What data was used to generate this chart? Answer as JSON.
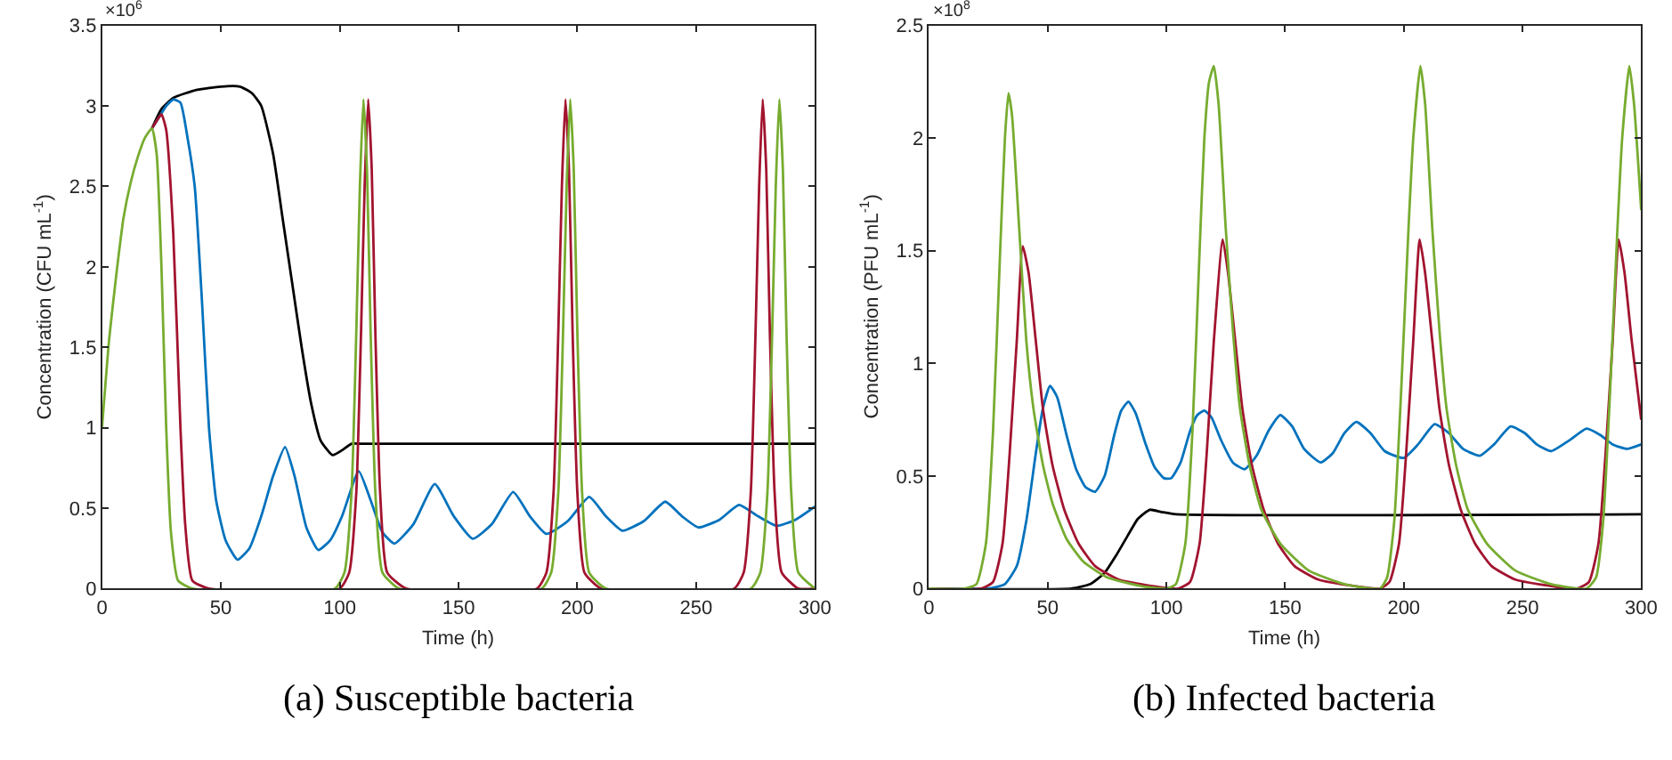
{
  "chart_data": [
    {
      "type": "line",
      "title": "(a) Susceptible bacteria",
      "xlabel": "Time (h)",
      "ylabel": "Concentration (CFU mL$^{-1}$)",
      "annotations": [
        "×10$^{6}$"
      ],
      "xlim": [
        0,
        300
      ],
      "xticks": [
        0,
        50,
        100,
        150,
        200,
        250,
        300
      ],
      "ylim": [
        0,
        3.5
      ],
      "yticks": [
        0,
        0.5,
        1,
        1.5,
        2,
        2.5,
        3,
        3.5
      ],
      "line_style": "solid",
      "marker": "none",
      "series": [
        {
          "color": "#000000",
          "x": [
            21,
            25,
            30,
            40,
            50,
            58,
            63,
            67,
            72,
            76,
            80,
            84,
            88,
            92,
            97,
            101,
            105,
            110,
            300
          ],
          "values": [
            2.86,
            2.98,
            3.05,
            3.1,
            3.12,
            3.12,
            3.08,
            3.0,
            2.7,
            2.3,
            1.9,
            1.5,
            1.15,
            0.92,
            0.83,
            0.86,
            0.9,
            0.9,
            0.9
          ]
        },
        {
          "color": "#0072bd",
          "x": [
            21,
            24,
            27,
            30,
            33,
            36,
            39,
            42,
            45,
            48,
            52,
            57,
            62,
            67,
            72,
            77,
            81,
            86,
            91,
            96,
            101,
            108,
            113,
            118,
            123,
            131,
            140,
            148,
            156,
            164,
            173,
            180,
            187,
            196,
            205,
            212,
            219,
            228,
            237,
            244,
            251,
            260,
            268,
            276,
            284,
            292,
            300
          ],
          "values": [
            2.86,
            2.93,
            3.0,
            3.04,
            3.02,
            2.8,
            2.5,
            1.8,
            1.0,
            0.55,
            0.3,
            0.18,
            0.25,
            0.45,
            0.7,
            0.88,
            0.7,
            0.38,
            0.24,
            0.3,
            0.45,
            0.73,
            0.55,
            0.35,
            0.28,
            0.4,
            0.65,
            0.45,
            0.31,
            0.4,
            0.6,
            0.45,
            0.34,
            0.42,
            0.57,
            0.45,
            0.36,
            0.42,
            0.54,
            0.45,
            0.38,
            0.43,
            0.52,
            0.45,
            0.39,
            0.43,
            0.51
          ]
        },
        {
          "color": "#a2142f",
          "x": [
            21,
            24,
            25,
            27,
            30,
            33,
            35,
            38,
            45,
            100,
            104,
            107,
            109,
            110.5,
            112,
            113.5,
            115,
            117,
            120,
            128,
            183,
            187,
            190,
            192,
            193.5,
            195,
            196.5,
            198,
            200,
            203,
            210,
            266,
            270,
            273,
            275,
            276.5,
            278,
            279.5,
            281,
            283,
            286,
            293,
            300
          ],
          "values": [
            2.86,
            2.93,
            2.95,
            2.85,
            2.2,
            1.0,
            0.4,
            0.05,
            0,
            0,
            0.1,
            0.6,
            1.6,
            2.5,
            3.04,
            2.6,
            1.6,
            0.6,
            0.1,
            0,
            0,
            0.1,
            0.6,
            1.6,
            2.5,
            3.04,
            2.6,
            1.6,
            0.6,
            0.1,
            0,
            0,
            0.1,
            0.6,
            1.6,
            2.5,
            3.04,
            2.6,
            1.6,
            0.6,
            0.1,
            0,
            0
          ]
        },
        {
          "color": "#77ac30",
          "x": [
            0,
            3,
            6,
            9,
            12,
            15,
            18,
            21,
            23,
            25,
            27,
            29,
            32,
            38,
            98,
            102,
            105,
            107,
            108.5,
            110,
            111.5,
            113,
            115,
            118,
            125,
            185,
            189,
            192,
            194,
            195.5,
            197,
            198.5,
            200,
            202,
            205,
            212,
            273,
            277,
            280,
            282,
            283.5,
            285,
            286.5,
            288,
            290,
            293,
            300
          ],
          "values": [
            1.0,
            1.55,
            1.95,
            2.3,
            2.52,
            2.68,
            2.8,
            2.86,
            2.7,
            2.0,
            1.0,
            0.35,
            0.05,
            0,
            0,
            0.1,
            0.6,
            1.6,
            2.5,
            3.04,
            2.6,
            1.6,
            0.6,
            0.1,
            0,
            0,
            0.1,
            0.6,
            1.6,
            2.5,
            3.04,
            2.6,
            1.6,
            0.6,
            0.1,
            0,
            0,
            0.1,
            0.6,
            1.6,
            2.5,
            3.04,
            2.6,
            1.6,
            0.6,
            0.1,
            0
          ]
        }
      ]
    },
    {
      "type": "line",
      "title": "(b) Infected bacteria",
      "xlabel": "Time (h)",
      "ylabel": "Concentration (PFU mL$^{-1}$)",
      "annotations": [
        "×10$^{8}$"
      ],
      "xlim": [
        0,
        300
      ],
      "xticks": [
        0,
        50,
        100,
        150,
        200,
        250,
        300
      ],
      "ylim": [
        0,
        2.5
      ],
      "yticks": [
        0,
        0.5,
        1,
        1.5,
        2,
        2.5
      ],
      "line_style": "solid",
      "marker": "none",
      "series": [
        {
          "color": "#000000",
          "x": [
            0,
            60,
            68,
            74,
            79,
            84,
            88,
            93,
            98,
            104,
            300
          ],
          "values": [
            0,
            0,
            0.02,
            0.07,
            0.15,
            0.24,
            0.31,
            0.35,
            0.34,
            0.33,
            0.33
          ]
        },
        {
          "color": "#0072bd",
          "x": [
            0,
            25,
            32,
            37,
            41,
            45,
            48,
            51,
            54,
            58,
            62,
            66,
            70,
            74,
            78,
            81,
            84,
            87,
            91,
            95,
            99,
            102,
            106,
            110,
            113,
            116,
            119,
            123,
            128,
            133,
            138,
            143,
            148,
            153,
            158,
            165,
            170,
            175,
            180,
            186,
            192,
            200,
            206,
            213,
            219,
            225,
            232,
            238,
            245,
            251,
            256,
            262,
            270,
            277,
            283,
            288,
            294,
            300
          ],
          "values": [
            0,
            0,
            0.02,
            0.1,
            0.3,
            0.6,
            0.8,
            0.9,
            0.85,
            0.68,
            0.53,
            0.45,
            0.43,
            0.5,
            0.68,
            0.79,
            0.83,
            0.78,
            0.65,
            0.54,
            0.49,
            0.49,
            0.56,
            0.7,
            0.77,
            0.79,
            0.76,
            0.66,
            0.56,
            0.53,
            0.59,
            0.7,
            0.77,
            0.72,
            0.62,
            0.56,
            0.6,
            0.69,
            0.74,
            0.69,
            0.61,
            0.58,
            0.64,
            0.73,
            0.69,
            0.62,
            0.59,
            0.64,
            0.72,
            0.69,
            0.64,
            0.61,
            0.66,
            0.71,
            0.68,
            0.64,
            0.62,
            0.64
          ]
        },
        {
          "color": "#a2142f",
          "x": [
            0,
            22,
            27,
            31,
            34,
            37,
            39.5,
            42,
            45,
            48,
            52,
            57,
            63,
            70,
            80,
            95,
            105,
            110,
            114,
            117,
            120,
            123.75,
            126,
            129,
            132,
            136,
            141,
            147,
            154,
            164,
            180,
            190,
            194,
            198,
            201,
            204,
            206.7,
            209,
            212,
            215,
            219,
            224,
            230,
            237,
            247,
            263,
            273,
            278,
            282,
            285,
            288,
            290.5,
            293,
            296,
            300
          ],
          "values": [
            0,
            0,
            0.03,
            0.2,
            0.6,
            1.1,
            1.52,
            1.4,
            1.1,
            0.8,
            0.55,
            0.35,
            0.2,
            0.1,
            0.04,
            0.01,
            0,
            0.03,
            0.2,
            0.6,
            1.1,
            1.55,
            1.4,
            1.1,
            0.8,
            0.55,
            0.35,
            0.2,
            0.1,
            0.04,
            0.01,
            0,
            0.03,
            0.2,
            0.6,
            1.1,
            1.55,
            1.4,
            1.1,
            0.8,
            0.55,
            0.35,
            0.2,
            0.1,
            0.04,
            0.01,
            0,
            0.03,
            0.2,
            0.6,
            1.1,
            1.55,
            1.4,
            1.1,
            0.75
          ]
        },
        {
          "color": "#77ac30",
          "x": [
            0,
            15,
            20,
            24,
            27,
            30,
            32,
            33.5,
            35,
            38,
            41,
            44,
            48,
            52,
            58,
            65,
            75,
            90,
            100,
            104,
            108,
            111,
            114,
            116,
            118,
            120,
            122,
            125,
            128,
            131,
            135,
            140,
            148,
            160,
            175,
            190,
            193,
            196,
            199,
            202,
            204,
            207,
            209,
            212,
            215,
            218,
            222,
            227,
            235,
            247,
            262,
            277,
            281,
            284,
            287,
            290,
            292,
            295,
            297,
            300
          ],
          "values": [
            0,
            0,
            0.02,
            0.2,
            0.7,
            1.5,
            2.0,
            2.2,
            2.1,
            1.6,
            1.1,
            0.8,
            0.55,
            0.38,
            0.22,
            0.12,
            0.05,
            0.01,
            0,
            0.02,
            0.2,
            0.7,
            1.5,
            2.0,
            2.25,
            2.32,
            2.15,
            1.6,
            1.15,
            0.8,
            0.55,
            0.35,
            0.2,
            0.08,
            0.02,
            0,
            0.05,
            0.3,
            0.9,
            1.6,
            2.0,
            2.32,
            2.15,
            1.6,
            1.15,
            0.8,
            0.55,
            0.35,
            0.2,
            0.08,
            0.02,
            0,
            0.05,
            0.3,
            0.9,
            1.6,
            2.0,
            2.32,
            2.15,
            1.68
          ]
        }
      ]
    }
  ]
}
